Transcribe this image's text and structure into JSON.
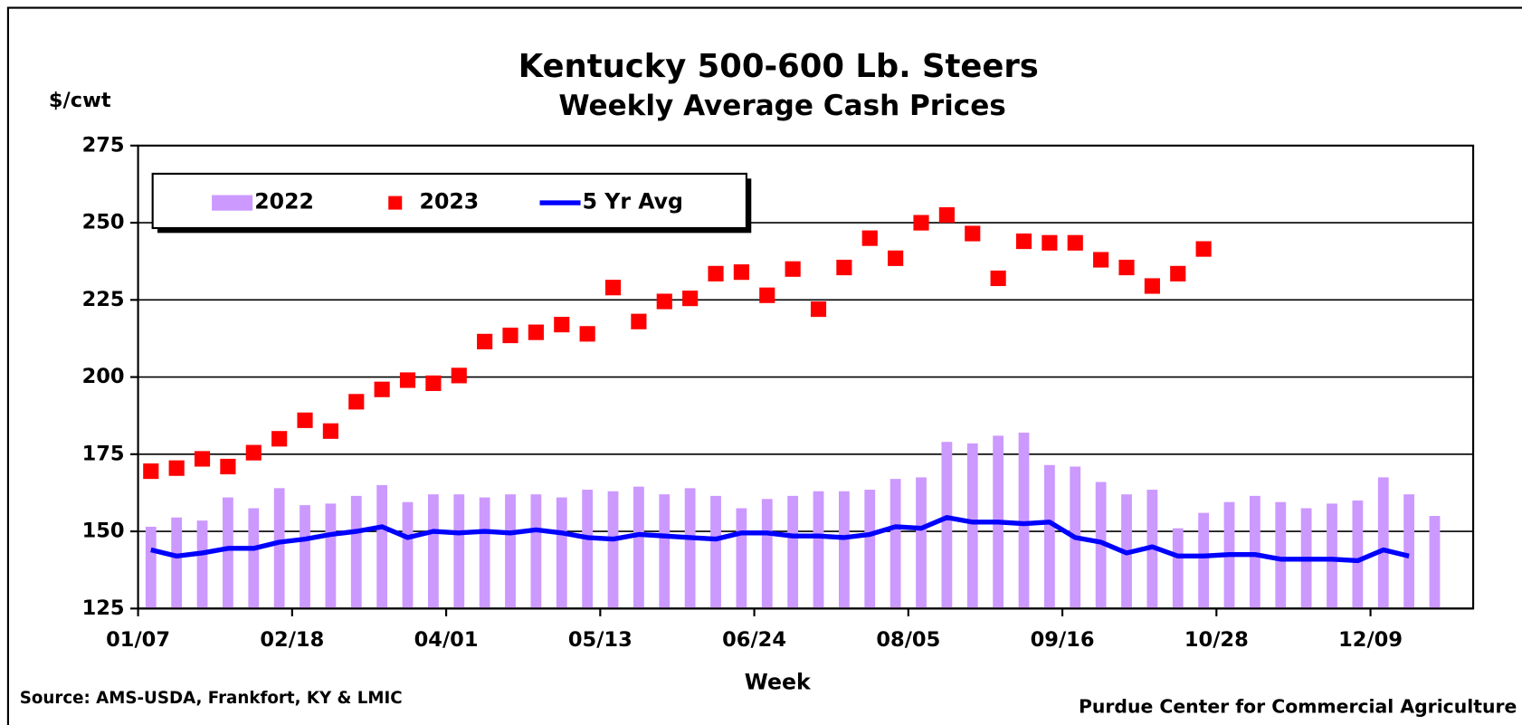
{
  "chart_data": {
    "type": "bar",
    "title": "Kentucky 500-600 Lb. Steers",
    "subtitle": "Weekly Average Cash Prices",
    "y_label": "$/cwt",
    "x_label": "Week",
    "source": "Source:  AMS-USDA, Frankfort, KY & LMIC",
    "credit": "Purdue Center for Commercial Agriculture",
    "categories": [
      "01/07",
      null,
      null,
      null,
      null,
      null,
      "02/18",
      null,
      null,
      null,
      null,
      null,
      "04/01",
      null,
      null,
      null,
      null,
      null,
      "05/13",
      null,
      null,
      null,
      null,
      null,
      "06/24",
      null,
      null,
      null,
      null,
      null,
      "08/05",
      null,
      null,
      null,
      null,
      null,
      "09/16",
      null,
      null,
      null,
      null,
      null,
      "10/28",
      null,
      null,
      null,
      null,
      null,
      "12/09",
      null,
      null,
      null
    ],
    "ylim": [
      125,
      275
    ],
    "yticks": [
      125,
      150,
      175,
      200,
      225,
      250,
      275
    ],
    "grid": true,
    "legend": "top-left",
    "series": [
      {
        "name": "2022",
        "type": "bar",
        "color": "#cc99ff",
        "values": [
          151.5,
          154.5,
          153.5,
          161,
          157.5,
          164,
          158.5,
          159,
          161.5,
          165,
          159.5,
          162,
          162,
          161,
          162,
          162,
          161,
          163.5,
          163,
          164.5,
          162,
          164,
          161.5,
          157.5,
          160.5,
          161.5,
          163,
          163,
          163.5,
          167,
          167.5,
          179,
          178.5,
          181,
          182,
          171.5,
          171,
          166,
          162,
          163.5,
          151,
          156,
          159.5,
          161.5,
          159.5,
          157.5,
          159,
          160,
          167.5,
          162,
          155,
          null
        ]
      },
      {
        "name": "2023",
        "type": "scatter",
        "color": "#ff0000",
        "values": [
          169.5,
          170.5,
          173.5,
          171,
          175.5,
          180,
          186,
          182.5,
          192,
          196,
          199,
          198,
          200.5,
          211.5,
          213.5,
          214.5,
          217,
          214,
          229,
          218,
          224.5,
          225.5,
          233.5,
          234,
          226.5,
          235,
          222,
          235.5,
          245,
          238.5,
          250,
          252.5,
          246.5,
          232,
          244,
          243.5,
          243.5,
          238,
          235.5,
          229.5,
          233.5,
          241.5,
          null,
          null,
          null,
          null,
          null,
          null,
          null,
          null,
          null,
          null
        ]
      },
      {
        "name": "5 Yr Avg",
        "type": "line",
        "color": "#0000ff",
        "values": [
          144,
          142,
          143,
          144.5,
          144.5,
          146.5,
          147.5,
          149,
          150,
          151.5,
          148,
          150,
          149.5,
          150,
          149.5,
          150.5,
          149.5,
          148,
          147.5,
          149,
          148.5,
          148,
          147.5,
          149.5,
          149.5,
          148.5,
          148.5,
          148,
          149,
          151.5,
          151,
          154.5,
          153,
          153,
          152.5,
          153,
          148,
          146.5,
          143,
          145,
          142,
          142,
          142.5,
          142.5,
          141,
          141,
          141,
          140.5,
          144,
          142,
          null,
          null
        ]
      }
    ]
  }
}
